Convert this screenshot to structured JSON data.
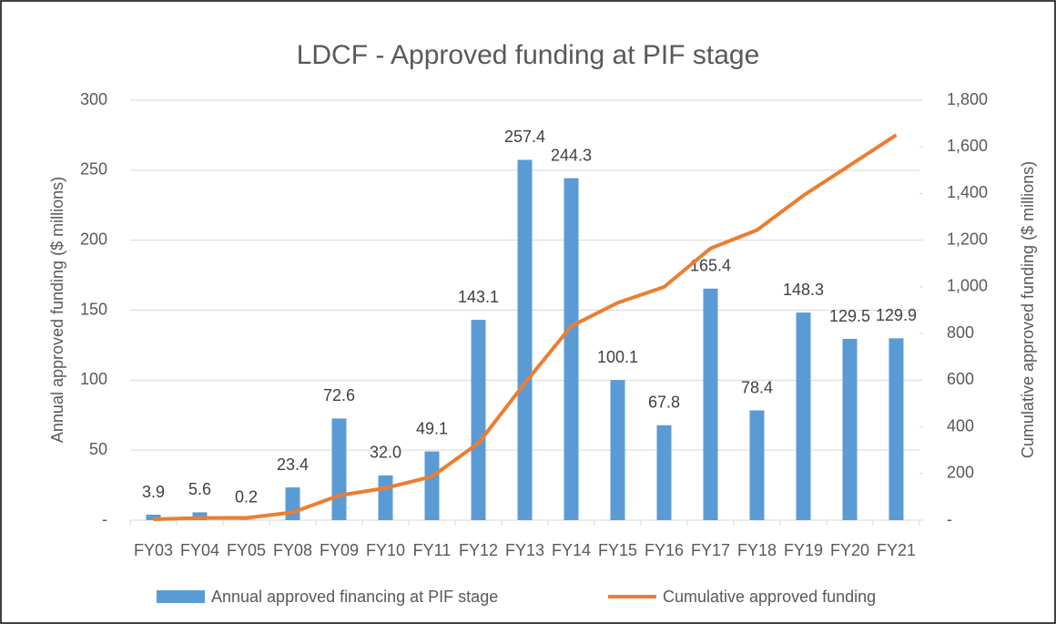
{
  "chart_data": {
    "type": "bar-line",
    "title": "LDCF - Approved funding at PIF stage",
    "ylabel": "Annual approved funding ($ millions)",
    "y2label": "Cumulative approved funding ($ millions)",
    "categories": [
      "FY03",
      "FY04",
      "FY05",
      "FY08",
      "FY09",
      "FY10",
      "FY11",
      "FY12",
      "FY13",
      "FY14",
      "FY15",
      "FY16",
      "FY17",
      "FY18",
      "FY19",
      "FY20",
      "FY21"
    ],
    "series": [
      {
        "name": "Annual approved financing at PIF stage",
        "type": "bar",
        "color": "#5b9bd5",
        "values": [
          3.9,
          5.6,
          0.2,
          23.4,
          72.6,
          32.0,
          49.1,
          143.1,
          257.4,
          244.3,
          100.1,
          67.8,
          165.4,
          78.4,
          148.3,
          129.5,
          129.9
        ],
        "value_labels": [
          "3.9",
          "5.6",
          "0.2",
          "23.4",
          "72.6",
          "32.0",
          "49.1",
          "143.1",
          "257.4",
          "244.3",
          "100.1",
          "67.8",
          "165.4",
          "78.4",
          "148.3",
          "129.5",
          "129.9"
        ]
      },
      {
        "name": "Cumulative approved funding",
        "type": "line",
        "color": "#ed7d31",
        "axis": "y2",
        "values": [
          3.9,
          9.5,
          9.7,
          33.1,
          105.7,
          137.7,
          186.8,
          329.9,
          587.3,
          831.6,
          931.7,
          999.5,
          1164.9,
          1243.3,
          1391.6,
          1521.1,
          1651.0
        ]
      }
    ],
    "ylim": [
      0,
      300
    ],
    "yticks": [
      {
        "value": 0,
        "label": "-"
      },
      50,
      100,
      150,
      200,
      250,
      300
    ],
    "y2lim": [
      0,
      1800
    ],
    "y2ticks": [
      {
        "value": 0,
        "label": "-"
      },
      200,
      400,
      600,
      800,
      {
        "value": 1000,
        "label": "1,000"
      },
      {
        "value": 1200,
        "label": "1,200"
      },
      {
        "value": 1400,
        "label": "1,400"
      },
      {
        "value": 1600,
        "label": "1,600"
      },
      {
        "value": 1800,
        "label": "1,800"
      }
    ],
    "grid": true,
    "legend": "bottom"
  }
}
